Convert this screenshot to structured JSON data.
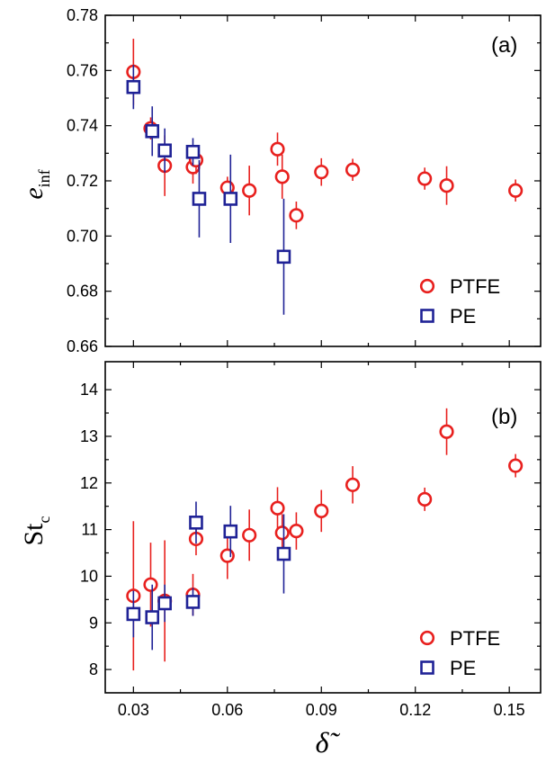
{
  "chart_data": [
    {
      "panel": "(a)",
      "type": "scatter",
      "ylabel": "e",
      "ylabel_sub": "inf",
      "ylim": [
        0.66,
        0.78
      ],
      "yticks": [
        "0.66",
        "0.68",
        "0.70",
        "0.72",
        "0.74",
        "0.76",
        "0.78"
      ],
      "ytick_values": [
        0.66,
        0.68,
        0.7,
        0.72,
        0.74,
        0.76,
        0.78
      ],
      "legend_position": "bottom-right",
      "series": [
        {
          "name": "PTFE",
          "color": "#e8201e",
          "marker": "circle",
          "points": [
            {
              "x": 0.03,
              "y": 0.7595,
              "err": 0.012
            },
            {
              "x": 0.0355,
              "y": 0.739,
              "err": 0.004
            },
            {
              "x": 0.04,
              "y": 0.7255,
              "err": 0.011
            },
            {
              "x": 0.049,
              "y": 0.725,
              "err": 0.006
            },
            {
              "x": 0.05,
              "y": 0.7275,
              "err": 0.005
            },
            {
              "x": 0.06,
              "y": 0.7175,
              "err": 0.004
            },
            {
              "x": 0.067,
              "y": 0.7165,
              "err": 0.009
            },
            {
              "x": 0.076,
              "y": 0.7315,
              "err": 0.006
            },
            {
              "x": 0.0775,
              "y": 0.7215,
              "err": 0.008
            },
            {
              "x": 0.082,
              "y": 0.7075,
              "err": 0.005
            },
            {
              "x": 0.09,
              "y": 0.7232,
              "err": 0.005
            },
            {
              "x": 0.1,
              "y": 0.724,
              "err": 0.004
            },
            {
              "x": 0.123,
              "y": 0.7208,
              "err": 0.004
            },
            {
              "x": 0.13,
              "y": 0.7183,
              "err": 0.007
            },
            {
              "x": 0.152,
              "y": 0.7165,
              "err": 0.004
            }
          ]
        },
        {
          "name": "PE",
          "color": "#1f2296",
          "marker": "square",
          "points": [
            {
              "x": 0.03,
              "y": 0.754,
              "err": 0.008
            },
            {
              "x": 0.036,
              "y": 0.738,
              "err": 0.009
            },
            {
              "x": 0.04,
              "y": 0.731,
              "err": 0.008
            },
            {
              "x": 0.049,
              "y": 0.7305,
              "err": 0.005
            },
            {
              "x": 0.051,
              "y": 0.7135,
              "err": 0.014
            },
            {
              "x": 0.061,
              "y": 0.7135,
              "err": 0.016
            },
            {
              "x": 0.078,
              "y": 0.6925,
              "err": 0.021
            }
          ]
        }
      ]
    },
    {
      "panel": "(b)",
      "type": "scatter",
      "ylabel": "St",
      "ylabel_sub": "c",
      "ylim": [
        7.5,
        14.6
      ],
      "yticks": [
        "8",
        "9",
        "10",
        "11",
        "12",
        "13",
        "14"
      ],
      "ytick_values": [
        8,
        9,
        10,
        11,
        12,
        13,
        14
      ],
      "legend_position": "bottom-right",
      "series": [
        {
          "name": "PTFE",
          "color": "#e8201e",
          "marker": "circle",
          "points": [
            {
              "x": 0.03,
              "y": 9.58,
              "err": 1.6
            },
            {
              "x": 0.0355,
              "y": 9.82,
              "err": 0.9
            },
            {
              "x": 0.04,
              "y": 9.47,
              "err": 1.3
            },
            {
              "x": 0.049,
              "y": 9.6,
              "err": 0.45
            },
            {
              "x": 0.05,
              "y": 10.8,
              "err": 0.35
            },
            {
              "x": 0.06,
              "y": 10.44,
              "err": 0.5
            },
            {
              "x": 0.067,
              "y": 10.88,
              "err": 0.55
            },
            {
              "x": 0.076,
              "y": 11.46,
              "err": 0.45
            },
            {
              "x": 0.0775,
              "y": 10.93,
              "err": 0.4
            },
            {
              "x": 0.082,
              "y": 10.97,
              "err": 0.4
            },
            {
              "x": 0.09,
              "y": 11.4,
              "err": 0.45
            },
            {
              "x": 0.1,
              "y": 11.96,
              "err": 0.4
            },
            {
              "x": 0.123,
              "y": 11.65,
              "err": 0.25
            },
            {
              "x": 0.13,
              "y": 13.1,
              "err": 0.5
            },
            {
              "x": 0.152,
              "y": 12.37,
              "err": 0.25
            }
          ]
        },
        {
          "name": "PE",
          "color": "#1f2296",
          "marker": "square",
          "points": [
            {
              "x": 0.03,
              "y": 9.19,
              "err": 0.5
            },
            {
              "x": 0.036,
              "y": 9.12,
              "err": 0.7
            },
            {
              "x": 0.04,
              "y": 9.42,
              "err": 0.4
            },
            {
              "x": 0.049,
              "y": 9.45,
              "err": 0.3
            },
            {
              "x": 0.05,
              "y": 11.15,
              "err": 0.45
            },
            {
              "x": 0.061,
              "y": 10.96,
              "err": 0.55
            },
            {
              "x": 0.078,
              "y": 10.48,
              "err": 0.85
            }
          ]
        }
      ]
    }
  ],
  "xaxis": {
    "label": "δ̃",
    "xlim": [
      0.021,
      0.16
    ],
    "xticks": [
      "0.03",
      "0.06",
      "0.09",
      "0.12",
      "0.15"
    ],
    "xtick_values": [
      0.03,
      0.06,
      0.09,
      0.12,
      0.15
    ]
  }
}
